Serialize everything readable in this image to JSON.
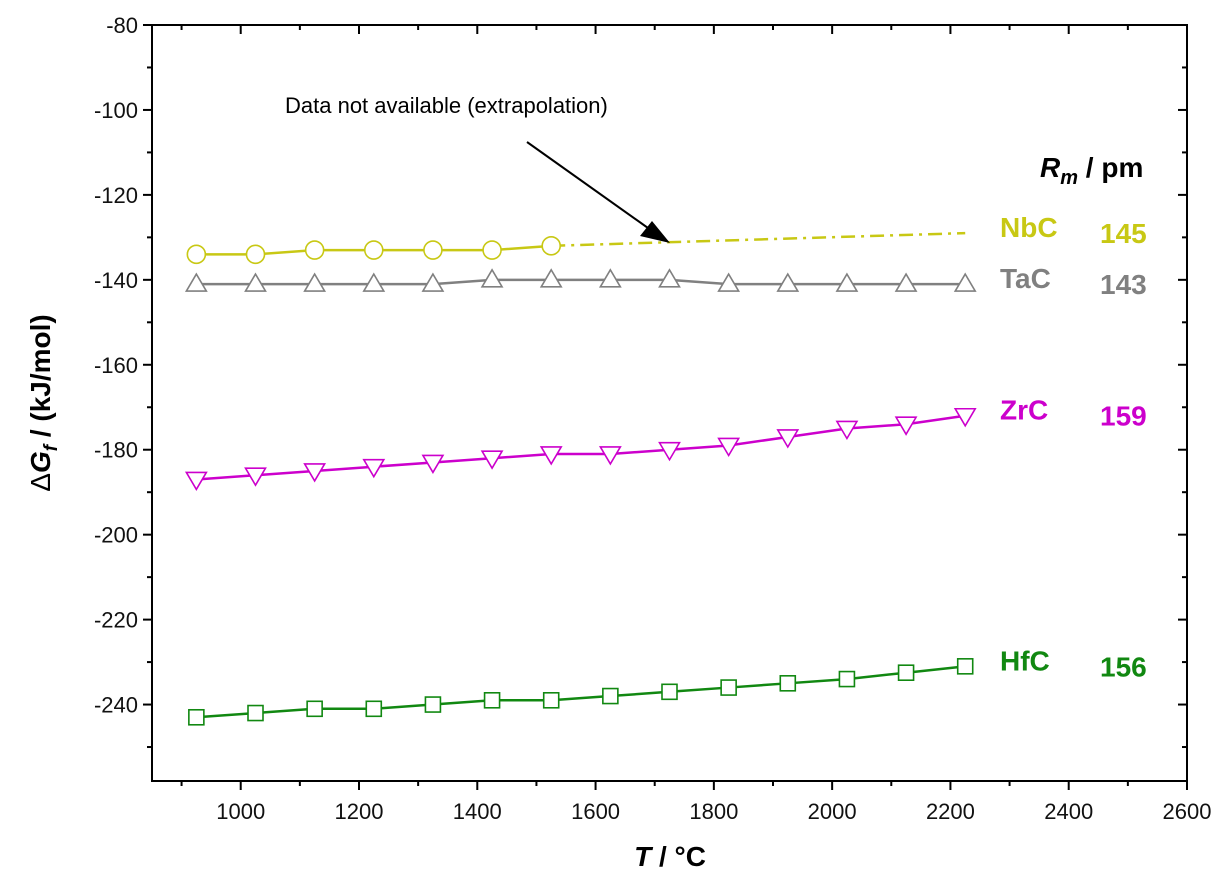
{
  "chart_data": {
    "type": "line",
    "xlabel_symbol": "T",
    "xlabel_unit": " / °C",
    "ylabel_prefix": "Δ",
    "ylabel_symbol": "G",
    "ylabel_sub": "f",
    "ylabel_unit": " / (kJ/mol)",
    "xlim": [
      850,
      2600
    ],
    "ylim": [
      -258,
      -80
    ],
    "xticks": [
      1000,
      1200,
      1400,
      1600,
      1800,
      2000,
      2200,
      2400,
      2600
    ],
    "yticks": [
      -80,
      -100,
      -120,
      -140,
      -160,
      -180,
      -200,
      -220,
      -240
    ],
    "grid": false,
    "legend_header_symbol": "R",
    "legend_header_sub": "m",
    "legend_header_unit": " / pm",
    "annotation": "Data not available (extrapolation)",
    "series": [
      {
        "name": "NbC",
        "radius_value": "145",
        "color": "#c8c814",
        "marker": "circle",
        "x": [
          925,
          1025,
          1125,
          1225,
          1325,
          1425,
          1525
        ],
        "y": [
          -134,
          -134,
          -133,
          -133,
          -133,
          -133,
          -132
        ],
        "extrapolation": {
          "x": [
            1525,
            2225
          ],
          "y": [
            -132,
            -129
          ]
        }
      },
      {
        "name": "TaC",
        "radius_value": "143",
        "color": "#808080",
        "marker": "triangle-up",
        "x": [
          925,
          1025,
          1125,
          1225,
          1325,
          1425,
          1525,
          1625,
          1725,
          1825,
          1925,
          2025,
          2125,
          2225
        ],
        "y": [
          -141,
          -141,
          -141,
          -141,
          -141,
          -140,
          -140,
          -140,
          -140,
          -141,
          -141,
          -141,
          -141,
          -141
        ]
      },
      {
        "name": "ZrC",
        "radius_value": "159",
        "color": "#cc00cc",
        "marker": "triangle-down",
        "x": [
          925,
          1025,
          1125,
          1225,
          1325,
          1425,
          1525,
          1625,
          1725,
          1825,
          1925,
          2025,
          2125,
          2225
        ],
        "y": [
          -187,
          -186,
          -185,
          -184,
          -183,
          -182,
          -181,
          -181,
          -180,
          -179,
          -177,
          -175,
          -174,
          -172
        ]
      },
      {
        "name": "HfC",
        "radius_value": "156",
        "color": "#118811",
        "marker": "square",
        "x": [
          925,
          1025,
          1125,
          1225,
          1325,
          1425,
          1525,
          1625,
          1725,
          1825,
          1925,
          2025,
          2125,
          2225
        ],
        "y": [
          -243,
          -242,
          -241,
          -241,
          -240,
          -239,
          -239,
          -238,
          -237,
          -236,
          -235,
          -234,
          -232.5,
          -231
        ]
      }
    ]
  }
}
